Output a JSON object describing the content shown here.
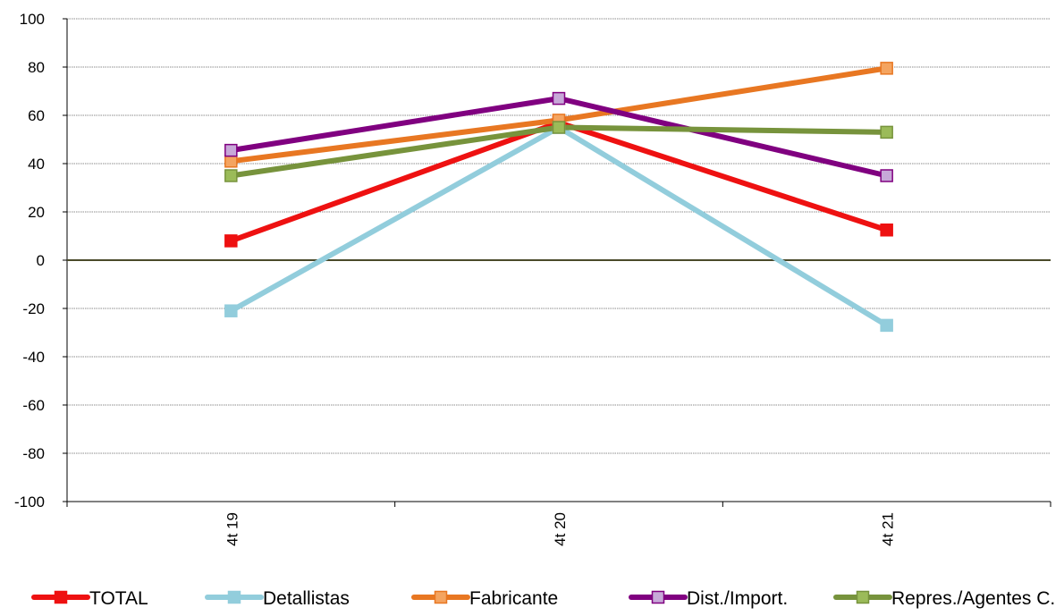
{
  "chart_data": {
    "type": "line",
    "categories": [
      "4t 19",
      "4t 20",
      "4t 21"
    ],
    "ylim": [
      -100,
      100
    ],
    "yticks": [
      100,
      80,
      60,
      40,
      20,
      0,
      -20,
      -40,
      -60,
      -80,
      -100
    ],
    "ytick_labels": [
      "100",
      "80",
      "60",
      "40",
      "20",
      "0",
      "-20",
      "-40",
      "-60",
      "-80",
      "-100"
    ],
    "grid": true,
    "legend_position": "bottom",
    "series": [
      {
        "name": "TOTAL",
        "values": [
          8,
          57,
          12.5
        ],
        "color": "#ee1111",
        "marker_fill": "#ee1111"
      },
      {
        "name": "Detallistas",
        "values": [
          -21,
          55,
          -27
        ],
        "color": "#92cddc",
        "marker_fill": "#92cddc"
      },
      {
        "name": "Fabricante",
        "values": [
          41,
          58,
          79.5
        ],
        "color": "#e87722",
        "marker_fill": "#f4a460"
      },
      {
        "name": "Dist./Import.",
        "values": [
          45.5,
          67,
          35
        ],
        "color": "#800080",
        "marker_fill": "#c7a8d8"
      },
      {
        "name": "Repres./Agentes C.",
        "values": [
          35,
          55,
          53
        ],
        "color": "#77933c",
        "marker_fill": "#9bbb59"
      }
    ]
  }
}
